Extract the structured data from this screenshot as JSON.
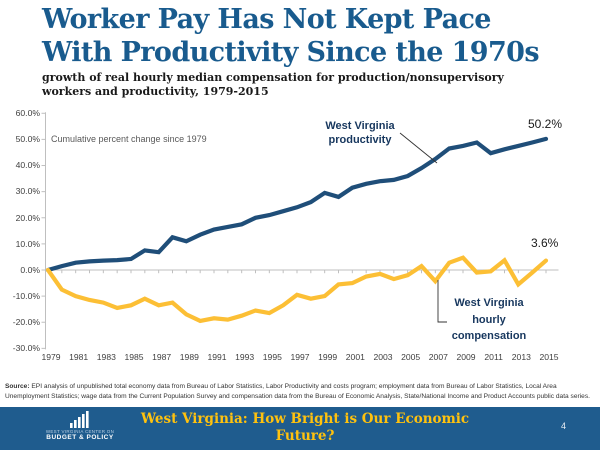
{
  "slide": {
    "title_lines": [
      "Worker Pay Has Not Kept Pace",
      "With Productivity Since the 1970s"
    ],
    "subtitle_lines": [
      "growth of real hourly median compensation for production/nonsupervisory",
      "workers and productivity, 1979-2015"
    ],
    "source_label": "Source:",
    "source_text": " EPI analysis of unpublished total economy data from Bureau of Labor Statistics, Labor Productivity and costs program; employment data from Bureau of Labor Statistics, Local Area Unemployment Statistics; wage data from the Current Population Survey and compensation data from the Bureau of Economic Analysis, State/National Income and Product Accounts public data series.",
    "page_number": "4",
    "footer": {
      "org_line1": "WEST VIRGINIA CENTER ON",
      "org_line2": "BUDGET & POLICY",
      "title_lines": [
        "West Virginia: How Bright is Our Economic",
        "Future?"
      ]
    }
  },
  "colors": {
    "title_blue": "#195B8E",
    "productivity_line": "#1F4E79",
    "compensation_line": "#FCBF35",
    "footer_bar": "#1F5C8E",
    "footer_gold": "#FFC20E",
    "axis_gray": "#BFBFBF",
    "label_gray": "#404040",
    "annotation_gray": "#595959",
    "series_label_navy": "#17375E"
  },
  "chart_data": {
    "type": "line",
    "title": "growth of real hourly median compensation for production/nonsupervisory workers and productivity, 1979-2015",
    "annotation": "Cumulative percent change since 1979",
    "xlabel": "",
    "ylabel": "Cumulative percent change (%)",
    "ylim": [
      -30,
      60
    ],
    "grid": false,
    "legend_position": "inline-callouts",
    "years": [
      1979,
      1980,
      1981,
      1982,
      1983,
      1984,
      1985,
      1986,
      1987,
      1988,
      1989,
      1990,
      1991,
      1992,
      1993,
      1994,
      1995,
      1996,
      1997,
      1998,
      1999,
      2000,
      2001,
      2002,
      2003,
      2004,
      2005,
      2006,
      2007,
      2008,
      2009,
      2010,
      2011,
      2012,
      2013,
      2014,
      2015
    ],
    "y_tick_values": [
      60,
      50,
      40,
      30,
      20,
      10,
      0,
      -10,
      -20,
      -30
    ],
    "y_tick_labels": [
      "60.0%",
      "50.0%",
      "40.0%",
      "30.0%",
      "20.0%",
      "10.0%",
      "0.0%",
      "-10.0%",
      "-20.0%",
      "-30.0%"
    ],
    "x_tick_labels": [
      "1979",
      "1981",
      "1983",
      "1985",
      "1987",
      "1989",
      "1991",
      "1993",
      "1995",
      "1997",
      "1999",
      "2001",
      "2003",
      "2005",
      "2007",
      "2009",
      "2011",
      "2013",
      "2015"
    ],
    "series": [
      {
        "name": "West Virginia productivity",
        "label_lines": [
          "West Virginia",
          "productivity"
        ],
        "end_label": "50.2%",
        "color": "#1F4E79",
        "values": [
          0.0,
          1.5,
          2.8,
          3.3,
          3.6,
          3.8,
          4.2,
          7.5,
          6.8,
          12.5,
          11.0,
          13.5,
          15.5,
          16.5,
          17.5,
          20.0,
          21.0,
          22.5,
          24.0,
          26.0,
          29.5,
          28.0,
          31.5,
          33.0,
          34.0,
          34.5,
          36.0,
          39.0,
          42.5,
          46.5,
          47.5,
          48.8,
          44.7,
          46.2,
          47.5,
          48.8,
          50.2
        ]
      },
      {
        "name": "West Virginia hourly compensation",
        "label_lines": [
          "West Virginia",
          "hourly",
          "compensation"
        ],
        "end_label": "3.6%",
        "color": "#FCBF35",
        "values": [
          0.0,
          -7.5,
          -10.0,
          -11.5,
          -12.5,
          -14.5,
          -13.5,
          -11.0,
          -13.5,
          -12.5,
          -17.0,
          -19.5,
          -18.5,
          -19.0,
          -17.5,
          -15.5,
          -16.5,
          -13.5,
          -9.5,
          -11.0,
          -10.0,
          -5.5,
          -5.0,
          -2.5,
          -1.5,
          -3.5,
          -2.0,
          1.5,
          -4.3,
          2.8,
          4.7,
          -1.0,
          -0.5,
          3.7,
          -5.5,
          -1.0,
          3.6
        ]
      }
    ]
  }
}
